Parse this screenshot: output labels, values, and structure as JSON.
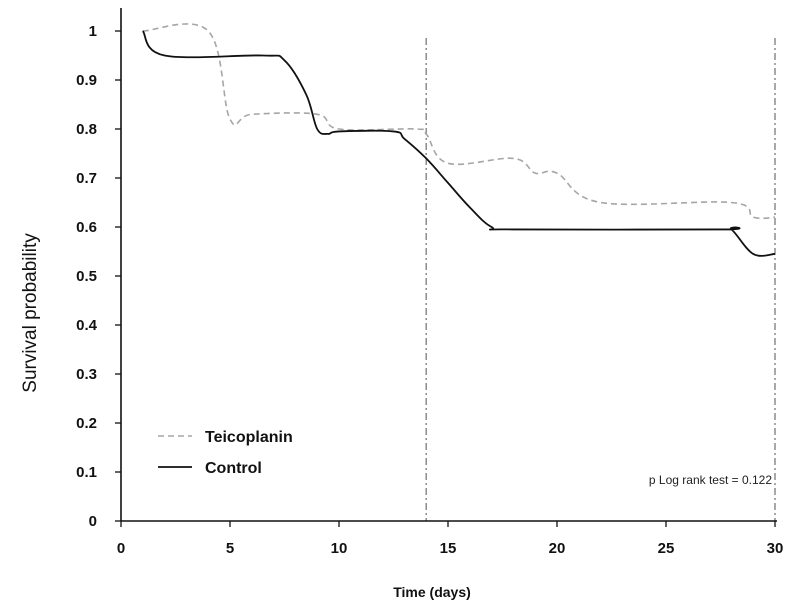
{
  "chart_data": {
    "type": "line",
    "title": "",
    "xlabel": "Time (days)",
    "ylabel": "Survival probability",
    "xlim": [
      0,
      30
    ],
    "ylim": [
      0,
      1
    ],
    "xticks": [
      0,
      5,
      10,
      15,
      20,
      25,
      30
    ],
    "xtick_labels": [
      "0",
      "5",
      "10",
      "15",
      "20",
      "25",
      "30"
    ],
    "yticks": [
      0,
      0.1,
      0.2,
      0.3,
      0.4,
      0.5,
      0.6,
      0.7,
      0.8,
      0.9,
      1
    ],
    "ytick_labels": [
      "0",
      "0.1",
      "0.2",
      "0.3",
      "0.4",
      "0.5",
      "0.6",
      "0.7",
      "0.8",
      "0.9",
      "1"
    ],
    "grid": false,
    "legend": "bottom-left",
    "vertical_reference_lines": [
      14,
      30
    ],
    "annotation": "p Log rank test = 0.122",
    "series": [
      {
        "name": "Teicoplanin",
        "style": "dashed",
        "color": "#a6a6a6",
        "x": [
          1,
          4,
          5,
          6,
          9,
          10,
          13.5,
          14,
          15,
          18,
          19,
          20,
          22,
          28,
          29,
          30
        ],
        "y": [
          1,
          1,
          0.82,
          0.83,
          0.83,
          0.8,
          0.8,
          0.79,
          0.73,
          0.74,
          0.71,
          0.71,
          0.65,
          0.65,
          0.62,
          0.62
        ]
      },
      {
        "name": "Control",
        "style": "solid",
        "color": "#111111",
        "x": [
          1,
          2,
          6.5,
          7.5,
          8.5,
          9,
          9.5,
          10,
          12.5,
          13,
          14,
          15,
          16,
          17,
          18,
          27.5,
          28,
          29,
          30
        ],
        "y": [
          1,
          0.95,
          0.95,
          0.94,
          0.87,
          0.8,
          0.79,
          0.795,
          0.795,
          0.78,
          0.74,
          0.69,
          0.64,
          0.6,
          0.595,
          0.595,
          0.595,
          0.545,
          0.545
        ]
      }
    ]
  }
}
